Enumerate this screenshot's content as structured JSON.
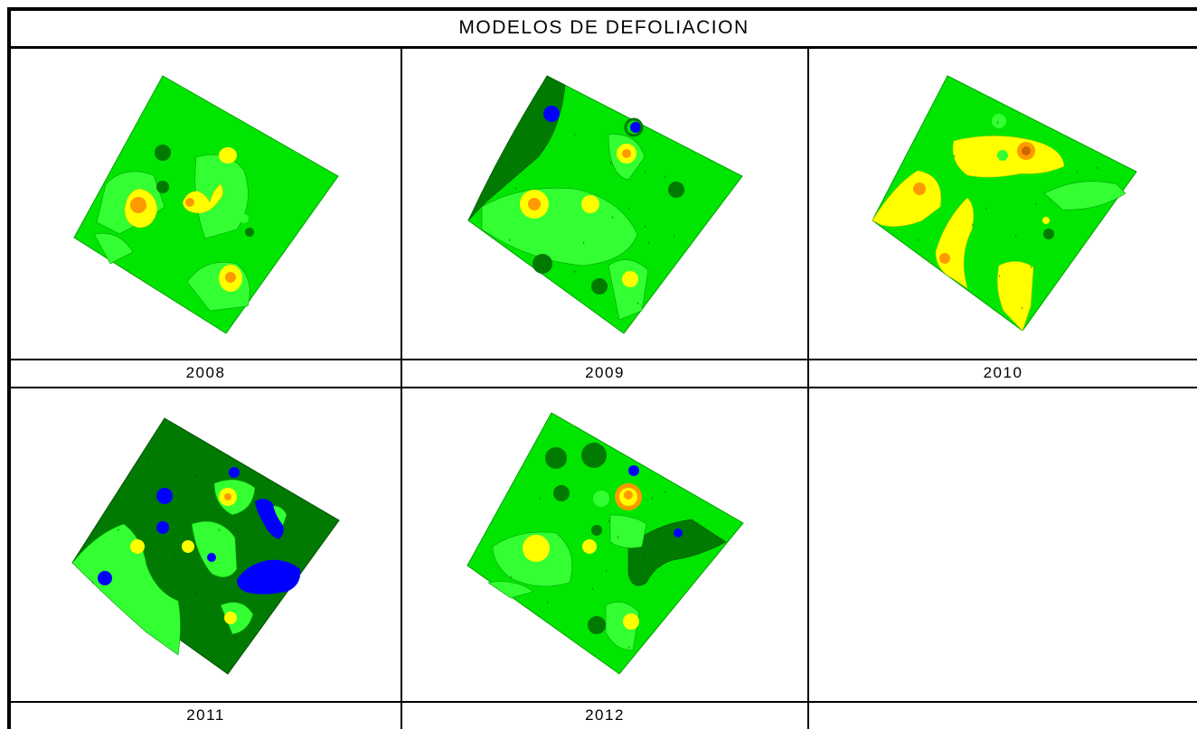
{
  "table": {
    "title": "MODELOS DE DEFOLIACION",
    "years": [
      "2008",
      "2009",
      "2010",
      "2011",
      "2012"
    ]
  },
  "colors": {
    "background_green": "#00e600",
    "dark_green": "#007a00",
    "light_green": "#33ff33",
    "yellow": "#ffff00",
    "orange": "#ff9900",
    "blue": "#0000ff"
  }
}
